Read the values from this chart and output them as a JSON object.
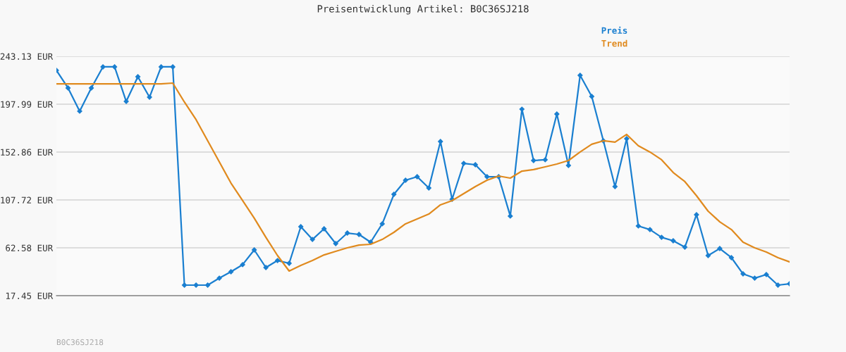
{
  "chart_data": {
    "type": "line",
    "title": "Preisentwicklung Artikel: B0C36SJ218",
    "categories": [
      null,
      null,
      null,
      null,
      null,
      null,
      null,
      null,
      null,
      null,
      null,
      null,
      null,
      null,
      null,
      null,
      null,
      null,
      null,
      null,
      null,
      null,
      null,
      null,
      null,
      null,
      null,
      null,
      null,
      null,
      null,
      null,
      null,
      null,
      null,
      null,
      null,
      null,
      null,
      null,
      null,
      null,
      null,
      null,
      null,
      null,
      null,
      null,
      null,
      null,
      null,
      null,
      null,
      null,
      null,
      null,
      null,
      null,
      null,
      null,
      null,
      null,
      null,
      null
    ],
    "series": [
      {
        "name": "Preis",
        "color": "#1a7fd0",
        "marker": "diamond",
        "values": [
          229.9,
          213.3,
          191.4,
          213.3,
          233.2,
          233.2,
          200.6,
          223.9,
          204.6,
          233.2,
          233.2,
          27.4,
          27.4,
          27.4,
          34.0,
          40.0,
          46.7,
          60.6,
          44.0,
          50.6,
          48.0,
          82.5,
          70.5,
          80.5,
          66.6,
          76.5,
          75.2,
          67.9,
          85.2,
          113.0,
          126.3,
          129.6,
          119.0,
          162.8,
          108.4,
          142.2,
          140.9,
          129.6,
          129.6,
          92.5,
          193.3,
          144.9,
          145.6,
          188.7,
          140.2,
          225.2,
          205.3,
          163.5,
          120.3,
          165.5,
          83.2,
          79.8,
          72.5,
          69.2,
          63.2,
          93.8,
          55.3,
          61.9,
          53.3,
          38.0,
          34.0,
          37.4,
          27.4,
          28.7
        ]
      },
      {
        "name": "Trend",
        "color": "#e08a1e",
        "marker": "none",
        "values": [
          217.2,
          217.2,
          217.2,
          217.2,
          217.2,
          217.2,
          217.2,
          217.2,
          217.2,
          217.2,
          217.9,
          200.0,
          183.4,
          163.5,
          143.6,
          123.6,
          107.1,
          90.5,
          72.5,
          55.3,
          40.7,
          46.0,
          50.6,
          55.9,
          59.3,
          62.6,
          65.2,
          65.9,
          70.5,
          77.2,
          85.2,
          89.8,
          94.4,
          103.1,
          107.1,
          113.7,
          120.3,
          126.3,
          130.3,
          128.3,
          134.9,
          136.3,
          138.9,
          141.6,
          144.9,
          152.9,
          160.2,
          163.5,
          162.2,
          169.5,
          158.8,
          152.9,
          145.6,
          133.6,
          125.0,
          111.7,
          97.1,
          87.1,
          79.8,
          67.9,
          62.6,
          58.6,
          53.3,
          49.3
        ]
      }
    ],
    "ylim": [
      17.45,
      243.13
    ],
    "yticks": [
      {
        "value": 17.45,
        "label": "17.45 EUR"
      },
      {
        "value": 62.58,
        "label": "62.58 EUR"
      },
      {
        "value": 107.72,
        "label": "107.72 EUR"
      },
      {
        "value": 152.86,
        "label": "152.86 EUR"
      },
      {
        "value": 197.99,
        "label": "197.99 EUR"
      },
      {
        "value": 243.13,
        "label": "243.13 EUR"
      }
    ],
    "grid": "y",
    "legend": "top right",
    "tick_labels": "y",
    "line_style": "solid",
    "annotations": [
      "B0C36SJ218"
    ]
  }
}
